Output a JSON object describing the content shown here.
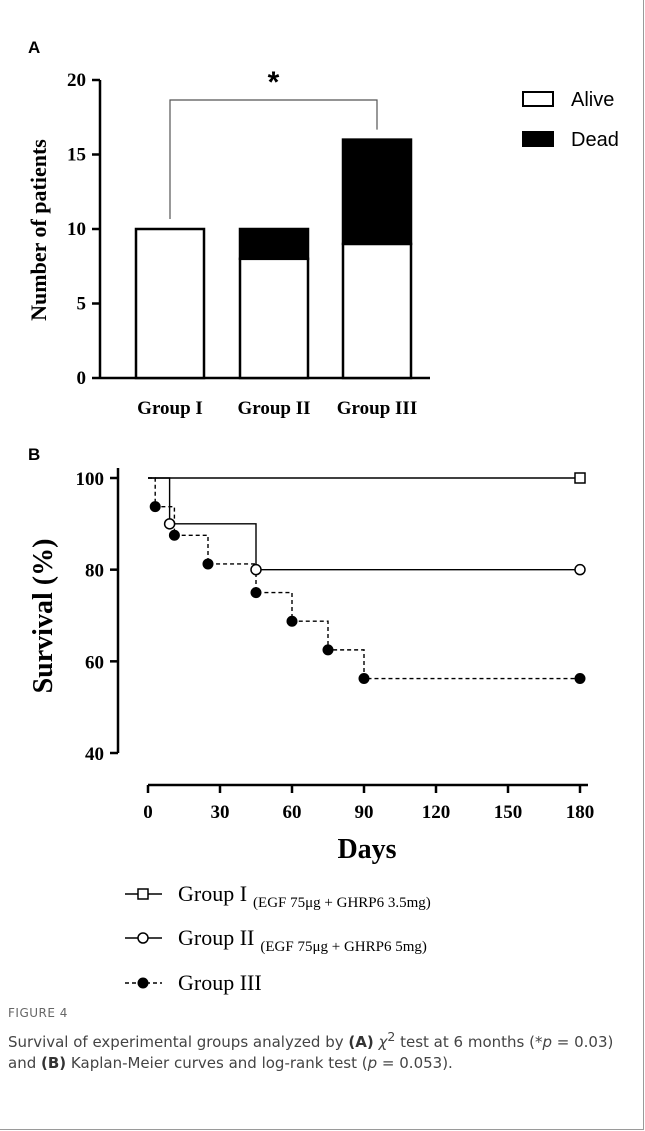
{
  "figure": {
    "label": "FIGURE 4",
    "caption_parts": [
      {
        "t": "Survival of experimental groups analyzed by ",
        "s": "n"
      },
      {
        "t": "(A)",
        "s": "b"
      },
      {
        "t": " χ",
        "s": "i"
      },
      {
        "t": "2",
        "s": "sup"
      },
      {
        "t": " test at 6 months (*",
        "s": "n"
      },
      {
        "t": "p",
        "s": "i"
      },
      {
        "t": " = 0.03) and ",
        "s": "n"
      },
      {
        "t": "(B)",
        "s": "b"
      },
      {
        "t": " Kaplan-Meier curves and log-rank test (",
        "s": "n"
      },
      {
        "t": "p",
        "s": "i"
      },
      {
        "t": " = 0.053).",
        "s": "n"
      }
    ]
  },
  "chart_data": [
    {
      "panel": "A",
      "type": "bar",
      "stacked": true,
      "categories": [
        "Group I",
        "Group II",
        "Group III"
      ],
      "series": [
        {
          "name": "Alive",
          "values": [
            10,
            8,
            9
          ],
          "color": "#ffffff"
        },
        {
          "name": "Dead",
          "values": [
            0,
            2,
            7
          ],
          "color": "#000000"
        }
      ],
      "ylabel": "Number of patients",
      "ylim": [
        0,
        20
      ],
      "yticks": [
        0,
        5,
        10,
        15,
        20
      ],
      "legend_position": "top-right",
      "significance": {
        "from": "Group I",
        "to": "Group III",
        "label": "*"
      }
    },
    {
      "panel": "B",
      "type": "line",
      "step": true,
      "xlabel": "Days",
      "ylabel": "Survival (%)",
      "xlim": [
        0,
        180
      ],
      "ylim": [
        40,
        100
      ],
      "xticks": [
        0,
        30,
        60,
        90,
        120,
        150,
        180
      ],
      "yticks": [
        40,
        60,
        80,
        100
      ],
      "series": [
        {
          "name": "Group I",
          "name_sub": "(EGF 75μg + GHRP6 3.5mg)",
          "marker": "open-square",
          "line": "solid",
          "points": [
            [
              0,
              100
            ],
            [
              180,
              100
            ]
          ],
          "markers": [
            [
              180,
              100
            ]
          ]
        },
        {
          "name": "Group II",
          "name_sub": "(EGF 75μg + GHRP6 5mg)",
          "marker": "open-circle",
          "line": "solid",
          "points": [
            [
              0,
              100
            ],
            [
              9,
              100
            ],
            [
              9,
              90
            ],
            [
              45,
              90
            ],
            [
              45,
              80
            ],
            [
              180,
              80
            ]
          ],
          "markers": [
            [
              9,
              90
            ],
            [
              45,
              80
            ],
            [
              180,
              80
            ]
          ]
        },
        {
          "name": "Group III",
          "name_sub": "",
          "marker": "filled-circle",
          "line": "dashed",
          "points": [
            [
              0,
              100
            ],
            [
              3,
              100
            ],
            [
              3,
              93.75
            ],
            [
              11,
              93.75
            ],
            [
              11,
              87.5
            ],
            [
              25,
              87.5
            ],
            [
              25,
              81.25
            ],
            [
              45,
              81.25
            ],
            [
              45,
              75
            ],
            [
              60,
              75
            ],
            [
              60,
              68.75
            ],
            [
              75,
              68.75
            ],
            [
              75,
              62.5
            ],
            [
              90,
              62.5
            ],
            [
              90,
              56.25
            ],
            [
              180,
              56.25
            ]
          ],
          "markers": [
            [
              3,
              93.75
            ],
            [
              11,
              87.5
            ],
            [
              25,
              81.25
            ],
            [
              45,
              75
            ],
            [
              60,
              68.75
            ],
            [
              75,
              62.5
            ],
            [
              90,
              56.25
            ],
            [
              180,
              56.25
            ]
          ]
        }
      ],
      "legend_position": "bottom"
    }
  ]
}
